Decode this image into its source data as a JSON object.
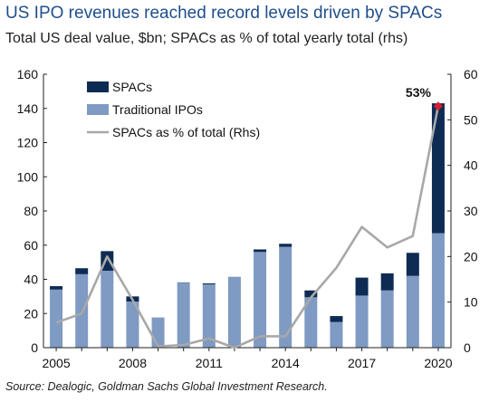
{
  "title": "US IPO revenues reached record levels driven by SPACs",
  "subtitle": "Total US deal value, $bn; SPACs as % of total yearly total (rhs)",
  "source": "Source: Dealogic, Goldman Sachs Global Investment Research.",
  "colors": {
    "spacs": "#0e2b54",
    "traditional": "#7f9ac3",
    "line": "#a8a8a8",
    "marker": "#d61e2d"
  },
  "chart_data": {
    "type": "bar",
    "categories": [
      "2005",
      "2006",
      "2007",
      "2008",
      "2009",
      "2010",
      "2011",
      "2012",
      "2013",
      "2014",
      "2015",
      "2016",
      "2017",
      "2018",
      "2019",
      "2020"
    ],
    "x_tick_labels": [
      "2005",
      "2008",
      "2011",
      "2014",
      "2017",
      "2020"
    ],
    "series": [
      {
        "name": "SPACs",
        "type": "bar",
        "stack": "total",
        "axis": "left",
        "values": [
          2,
          3.5,
          11.5,
          3,
          0.1,
          0.2,
          0.6,
          0,
          1.5,
          1.8,
          4,
          3.5,
          10.5,
          10,
          13.5,
          76
        ]
      },
      {
        "name": "Traditional  IPOs",
        "type": "bar",
        "stack": "total",
        "axis": "left",
        "values": [
          34,
          43,
          45,
          27,
          17.5,
          38,
          37,
          41.5,
          56,
          59,
          29.5,
          15,
          30.5,
          33.5,
          42,
          67
        ]
      },
      {
        "name": "SPACs as % of total (Rhs)",
        "type": "line",
        "axis": "right",
        "values": [
          5.5,
          7.5,
          20,
          10.5,
          0.3,
          0.6,
          2,
          0,
          2.5,
          2.5,
          11,
          17.5,
          26.5,
          22,
          24.5,
          53
        ]
      }
    ],
    "ylim": [
      0,
      160
    ],
    "yticks": [
      0,
      20,
      40,
      60,
      80,
      100,
      120,
      140,
      160
    ],
    "y2lim": [
      0,
      60
    ],
    "y2ticks": [
      0,
      10,
      20,
      30,
      40,
      50,
      60
    ],
    "annotation": {
      "label": "53%",
      "category": "2020",
      "value": 53
    },
    "legend_position": "top-left",
    "grid": false
  }
}
